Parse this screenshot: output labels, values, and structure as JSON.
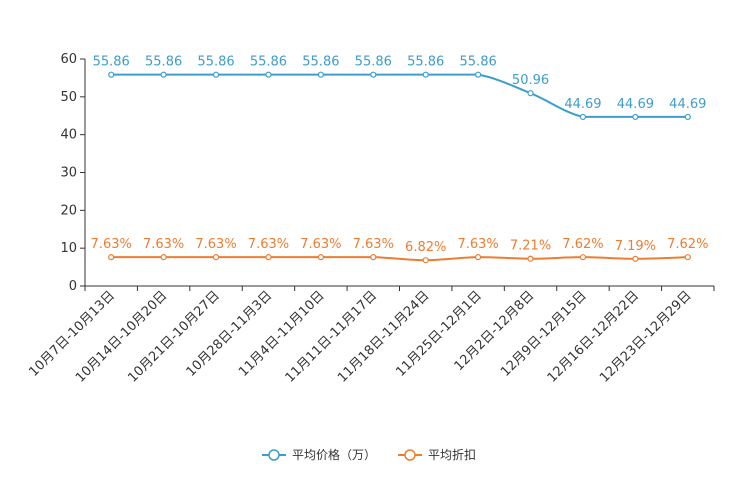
{
  "chart_data": {
    "type": "line",
    "title": "",
    "xlabel": "",
    "ylabel": "",
    "ylim": [
      0,
      60
    ],
    "yticks": [
      0,
      10,
      20,
      30,
      40,
      50,
      60
    ],
    "grid": false,
    "legend_position": "bottom-center",
    "categories": [
      "10月7日-10月13日",
      "10月14日-10月20日",
      "10月21日-10月27日",
      "10月28日-11月3日",
      "11月4日-11月10日",
      "11月11日-11月17日",
      "11月18日-11月24日",
      "11月25日-12月1日",
      "12月2日-12月8日",
      "12月9日-12月15日",
      "12月16日-12月22日",
      "12月23日-12月29日"
    ],
    "series": [
      {
        "name": "平均价格（万）",
        "color": "#3d9dcf",
        "values": [
          55.86,
          55.86,
          55.86,
          55.86,
          55.86,
          55.86,
          55.86,
          55.86,
          50.96,
          44.69,
          44.69,
          44.69
        ],
        "labels": [
          "55.86",
          "55.86",
          "55.86",
          "55.86",
          "55.86",
          "55.86",
          "55.86",
          "55.86",
          "50.96",
          "44.69",
          "44.69",
          "44.69"
        ]
      },
      {
        "name": "平均折扣",
        "color": "#ed7d31",
        "values": [
          7.63,
          7.63,
          7.63,
          7.63,
          7.63,
          7.63,
          6.82,
          7.63,
          7.21,
          7.62,
          7.19,
          7.62
        ],
        "labels": [
          "7.63%",
          "7.63%",
          "7.63%",
          "7.63%",
          "7.63%",
          "7.63%",
          "6.82%",
          "7.63%",
          "7.21%",
          "7.62%",
          "7.19%",
          "7.62%"
        ]
      }
    ]
  }
}
